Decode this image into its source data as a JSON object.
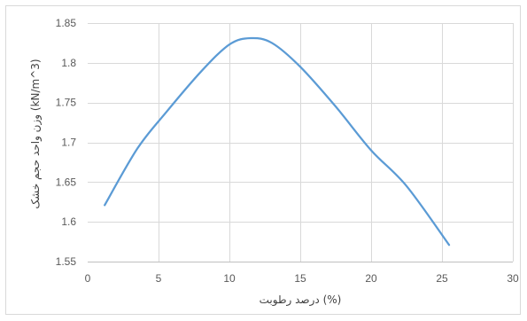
{
  "chart_data": {
    "type": "line",
    "smooth": true,
    "title": "",
    "xlabel": "درصد رطوبت (%)",
    "ylabel": "وزن واحد حجم خشک (kN/m^3)",
    "xlim": [
      0,
      30
    ],
    "ylim": [
      1.55,
      1.85
    ],
    "x_ticks": [
      "0",
      "5",
      "10",
      "15",
      "20",
      "25",
      "30"
    ],
    "y_ticks": [
      "1.55",
      "1.6",
      "1.65",
      "1.7",
      "1.75",
      "1.8",
      "1.85"
    ],
    "grid": true,
    "legend": "none",
    "series": [
      {
        "x": [
          1.2,
          3.5,
          5.5,
          8.0,
          10.0,
          11.5,
          13.0,
          15.0,
          17.5,
          20.0,
          22.5,
          25.5
        ],
        "y": [
          1.621,
          1.692,
          1.737,
          1.789,
          1.823,
          1.831,
          1.825,
          1.795,
          1.745,
          1.69,
          1.645,
          1.571
        ],
        "color": "#5b9bd5"
      }
    ]
  }
}
